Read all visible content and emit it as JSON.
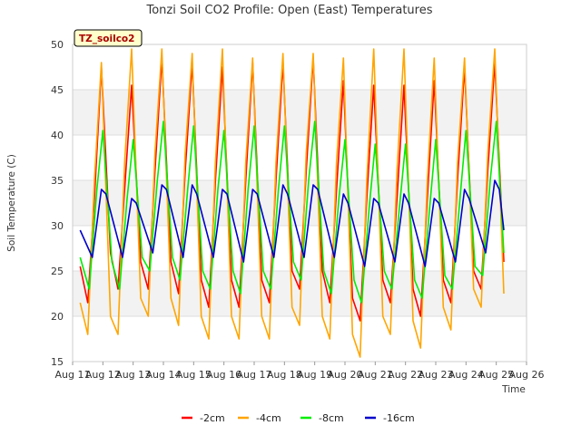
{
  "chart_data": {
    "type": "line",
    "title": "Tonzi Soil CO2 Profile: Open (East) Temperatures",
    "xlabel": "Time",
    "ylabel": "Soil Temperature (C)",
    "badge": "TZ_soilco2",
    "xlim": [
      11,
      26
    ],
    "ylim": [
      15,
      50
    ],
    "x_ticks": [
      {
        "value": 11,
        "label": "Aug 11"
      },
      {
        "value": 12,
        "label": "Aug 12"
      },
      {
        "value": 13,
        "label": "Aug 13"
      },
      {
        "value": 14,
        "label": "Aug 14"
      },
      {
        "value": 15,
        "label": "Aug 15"
      },
      {
        "value": 16,
        "label": "Aug 16"
      },
      {
        "value": 17,
        "label": "Aug 17"
      },
      {
        "value": 18,
        "label": "Aug 18"
      },
      {
        "value": 19,
        "label": "Aug 19"
      },
      {
        "value": 20,
        "label": "Aug 20"
      },
      {
        "value": 21,
        "label": "Aug 21"
      },
      {
        "value": 22,
        "label": "Aug 22"
      },
      {
        "value": 23,
        "label": "Aug 23"
      },
      {
        "value": 24,
        "label": "Aug 24"
      },
      {
        "value": 25,
        "label": "Aug 25"
      },
      {
        "value": 26,
        "label": "Aug 26"
      }
    ],
    "y_ticks": [
      15,
      20,
      25,
      30,
      35,
      40,
      45,
      50
    ],
    "grid": true,
    "legend_position": "bottom",
    "series": [
      {
        "name": "-2cm",
        "color": "#ff0000",
        "x": [
          11.25,
          11.5,
          11.72,
          11.95,
          12.25,
          12.5,
          12.72,
          12.95,
          13.25,
          13.5,
          13.72,
          13.95,
          14.25,
          14.5,
          14.72,
          14.95,
          15.25,
          15.5,
          15.72,
          15.95,
          16.25,
          16.5,
          16.72,
          16.95,
          17.25,
          17.5,
          17.72,
          17.95,
          18.25,
          18.5,
          18.72,
          18.95,
          19.25,
          19.5,
          19.72,
          19.95,
          20.25,
          20.5,
          20.72,
          20.95,
          21.25,
          21.5,
          21.72,
          21.95,
          22.25,
          22.5,
          22.72,
          22.95,
          23.25,
          23.5,
          23.72,
          23.95,
          24.25,
          24.5,
          24.72,
          24.95,
          25.25
        ],
        "y": [
          25.5,
          21.5,
          33,
          47.5,
          27,
          23,
          34,
          45.5,
          26,
          23,
          36,
          48.5,
          26,
          22.5,
          36,
          48,
          24,
          21,
          35,
          47.5,
          24,
          21,
          35,
          48,
          24,
          21.5,
          35,
          48,
          25,
          23,
          36,
          48.5,
          25,
          21.5,
          34,
          46,
          22,
          19.5,
          33,
          45.5,
          24,
          21.5,
          33,
          45.5,
          23,
          20,
          33,
          46,
          24,
          21.5,
          35,
          47.5,
          25,
          23,
          36,
          48,
          26
        ]
      },
      {
        "name": "-4cm",
        "color": "#ffa500",
        "x": [
          11.25,
          11.5,
          11.72,
          11.95,
          12.25,
          12.5,
          12.72,
          12.95,
          13.25,
          13.5,
          13.72,
          13.95,
          14.25,
          14.5,
          14.72,
          14.95,
          15.25,
          15.5,
          15.72,
          15.95,
          16.25,
          16.5,
          16.72,
          16.95,
          17.25,
          17.5,
          17.72,
          17.95,
          18.25,
          18.5,
          18.72,
          18.95,
          19.25,
          19.5,
          19.72,
          19.95,
          20.25,
          20.5,
          20.72,
          20.95,
          21.25,
          21.5,
          21.72,
          21.95,
          22.25,
          22.5,
          22.72,
          22.95,
          23.25,
          23.5,
          23.72,
          23.95,
          24.25,
          24.5,
          24.72,
          24.95,
          25.25
        ],
        "y": [
          21.5,
          18,
          35,
          48,
          20,
          18,
          37,
          49.5,
          22,
          20,
          38,
          49.5,
          22,
          19,
          38,
          49,
          20,
          17.5,
          37,
          49.5,
          20,
          17.5,
          37,
          48.5,
          20,
          17.5,
          37,
          49,
          21,
          19,
          38,
          49,
          20,
          17.5,
          37,
          48.5,
          18,
          15.5,
          35,
          49.5,
          20,
          18,
          36,
          49.5,
          19.5,
          16.5,
          35,
          48.5,
          21,
          18.5,
          37,
          48.5,
          23,
          21,
          38,
          49.5,
          22.5
        ]
      },
      {
        "name": "-8cm",
        "color": "#00ee00",
        "x": [
          11.25,
          11.55,
          11.8,
          12.0,
          12.3,
          12.55,
          12.8,
          13.0,
          13.3,
          13.55,
          13.8,
          14.0,
          14.3,
          14.55,
          14.8,
          15.0,
          15.3,
          15.55,
          15.8,
          16.0,
          16.3,
          16.55,
          16.8,
          17.0,
          17.3,
          17.55,
          17.8,
          18.0,
          18.3,
          18.55,
          18.8,
          19.0,
          19.3,
          19.55,
          19.8,
          20.0,
          20.3,
          20.55,
          20.8,
          21.0,
          21.3,
          21.55,
          21.8,
          22.0,
          22.3,
          22.55,
          22.8,
          23.0,
          23.3,
          23.55,
          23.8,
          24.0,
          24.3,
          24.55,
          24.8,
          25.0,
          25.25
        ],
        "y": [
          26.5,
          23,
          34,
          40.5,
          26,
          23,
          33,
          39.5,
          26.5,
          25,
          35,
          41.5,
          26.5,
          24,
          34,
          41,
          25,
          23,
          34,
          40.5,
          25,
          22.5,
          34,
          41,
          25,
          23,
          34,
          41,
          26,
          24,
          35,
          41.5,
          25,
          22.5,
          33,
          39.5,
          24,
          21.5,
          32,
          39,
          25,
          23,
          32,
          39,
          24,
          22,
          32,
          39.5,
          24.5,
          23,
          33,
          40.5,
          25.5,
          24.5,
          35,
          41.5,
          27
        ]
      },
      {
        "name": "-16cm",
        "color": "#0000cc",
        "x": [
          11.25,
          11.65,
          11.95,
          12.1,
          12.65,
          12.95,
          13.1,
          13.65,
          13.95,
          14.1,
          14.65,
          14.95,
          15.1,
          15.65,
          15.95,
          16.1,
          16.65,
          16.95,
          17.1,
          17.65,
          17.95,
          18.1,
          18.65,
          18.95,
          19.1,
          19.65,
          19.95,
          20.1,
          20.65,
          20.95,
          21.1,
          21.65,
          21.95,
          22.1,
          22.65,
          22.95,
          23.1,
          23.65,
          23.95,
          24.1,
          24.65,
          24.95,
          25.1,
          25.25
        ],
        "y": [
          29.5,
          26.5,
          34,
          33.5,
          26.5,
          33,
          32.5,
          27,
          34.5,
          34,
          26.5,
          34.5,
          33.5,
          26.5,
          34,
          33.5,
          26,
          34,
          33.5,
          26.5,
          34.5,
          33.5,
          26.5,
          34.5,
          34,
          26.5,
          33.5,
          32.5,
          25.5,
          33,
          32.5,
          26,
          33.5,
          32.5,
          25.5,
          33,
          32.5,
          26,
          34,
          33,
          27,
          35,
          34,
          29.5
        ]
      }
    ]
  }
}
